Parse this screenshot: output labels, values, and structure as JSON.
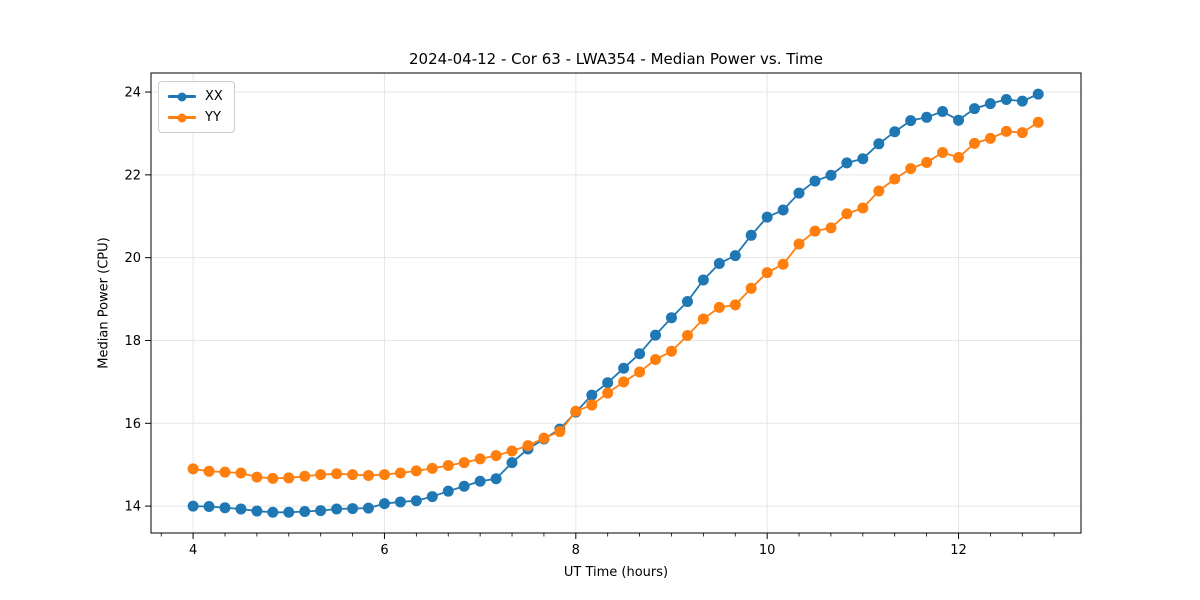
{
  "chart_data": {
    "type": "line",
    "title": "2024-04-12 - Cor 63 - LWA354 - Median Power vs. Time",
    "xlabel": "UT Time (hours)",
    "ylabel": "Median Power (CPU)",
    "xlim": [
      3.56,
      13.28
    ],
    "ylim": [
      13.35,
      24.46
    ],
    "xticks": [
      4,
      6,
      8,
      10,
      12
    ],
    "yticks": [
      14,
      16,
      18,
      20,
      22,
      24
    ],
    "minor_xtick_start": 3.667,
    "minor_xtick_step": 0.3333,
    "grid": true,
    "grid_color": "#e6e6e6",
    "legend_position": "upper left",
    "marker": "o",
    "x": [
      4.0,
      4.167,
      4.333,
      4.5,
      4.667,
      4.833,
      5.0,
      5.167,
      5.333,
      5.5,
      5.667,
      5.833,
      6.0,
      6.167,
      6.333,
      6.5,
      6.667,
      6.833,
      7.0,
      7.167,
      7.333,
      7.5,
      7.667,
      7.833,
      8.0,
      8.167,
      8.333,
      8.5,
      8.667,
      8.833,
      9.0,
      9.167,
      9.333,
      9.5,
      9.667,
      9.833,
      10.0,
      10.167,
      10.333,
      10.5,
      10.667,
      10.833,
      11.0,
      11.167,
      11.333,
      11.5,
      11.667,
      11.833,
      12.0,
      12.167,
      12.333,
      12.5,
      12.667,
      12.833
    ],
    "series": [
      {
        "name": "XX",
        "color": "#1f77b4",
        "values": [
          14.0,
          13.99,
          13.96,
          13.93,
          13.88,
          13.85,
          13.85,
          13.87,
          13.89,
          13.93,
          13.94,
          13.95,
          14.06,
          14.1,
          14.13,
          14.23,
          14.36,
          14.48,
          14.6,
          14.66,
          15.05,
          15.38,
          15.62,
          15.86,
          16.27,
          16.68,
          16.98,
          17.33,
          17.68,
          18.13,
          18.55,
          18.94,
          19.46,
          19.86,
          20.05,
          20.54,
          20.98,
          21.15,
          21.56,
          21.85,
          21.99,
          22.29,
          22.39,
          22.75,
          23.04,
          23.31,
          23.39,
          23.53,
          23.32,
          23.6,
          23.72,
          23.82,
          23.78,
          23.95
        ]
      },
      {
        "name": "YY",
        "color": "#ff7f0e",
        "values": [
          14.9,
          14.84,
          14.82,
          14.8,
          14.7,
          14.67,
          14.68,
          14.72,
          14.76,
          14.78,
          14.76,
          14.74,
          14.76,
          14.8,
          14.85,
          14.91,
          14.98,
          15.05,
          15.14,
          15.22,
          15.33,
          15.46,
          15.64,
          15.8,
          16.29,
          16.44,
          16.73,
          17.0,
          17.24,
          17.54,
          17.74,
          18.12,
          18.52,
          18.8,
          18.86,
          19.26,
          19.64,
          19.84,
          20.33,
          20.64,
          20.72,
          21.06,
          21.2,
          21.61,
          21.9,
          22.15,
          22.3,
          22.54,
          22.42,
          22.76,
          22.88,
          23.05,
          23.02,
          23.27
        ]
      }
    ]
  }
}
